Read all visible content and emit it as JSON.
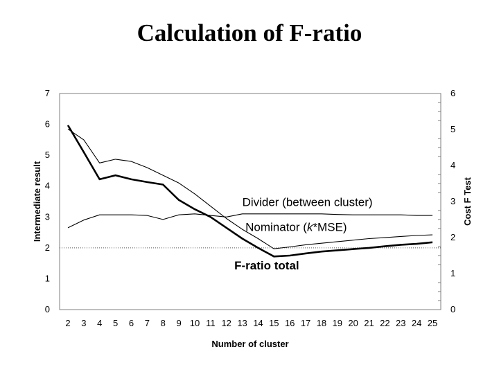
{
  "slide": {
    "title": "Calculation of F-ratio"
  },
  "chart_data": {
    "type": "line",
    "title": "",
    "xlabel": "Number of cluster",
    "ylabel": "Intermediate result",
    "y2label": "Cost F Test",
    "x": [
      2,
      3,
      4,
      5,
      6,
      7,
      8,
      9,
      10,
      11,
      12,
      13,
      14,
      15,
      16,
      17,
      18,
      19,
      20,
      21,
      22,
      23,
      24,
      25
    ],
    "ylim": [
      0,
      7
    ],
    "y2lim": [
      0,
      6
    ],
    "yticks": [
      0,
      1,
      2,
      3,
      4,
      5,
      6,
      7
    ],
    "y2ticks": [
      0,
      1,
      2,
      3,
      4,
      5,
      6
    ],
    "reference_line_y": 2,
    "series": [
      {
        "name": "Divider (between cluster)",
        "axis": "left",
        "style": "thin",
        "values": [
          2.65,
          2.9,
          3.07,
          3.07,
          3.07,
          3.05,
          2.92,
          3.07,
          3.1,
          3.05,
          3.0,
          3.1,
          3.1,
          3.1,
          3.1,
          3.1,
          3.1,
          3.08,
          3.07,
          3.07,
          3.07,
          3.07,
          3.05,
          3.05
        ]
      },
      {
        "name": "Nominator (k*MSE)",
        "axis": "left",
        "style": "thin",
        "values": [
          5.85,
          5.5,
          4.75,
          4.87,
          4.8,
          4.6,
          4.35,
          4.1,
          3.75,
          3.35,
          2.95,
          2.6,
          2.3,
          1.97,
          2.03,
          2.1,
          2.15,
          2.2,
          2.25,
          2.3,
          2.33,
          2.37,
          2.4,
          2.42
        ]
      },
      {
        "name": "F-ratio total",
        "axis": "left",
        "style": "bold",
        "values": [
          5.97,
          5.1,
          4.22,
          4.35,
          4.22,
          4.13,
          4.05,
          3.55,
          3.25,
          3.0,
          2.65,
          2.3,
          2.0,
          1.72,
          1.75,
          1.82,
          1.88,
          1.92,
          1.96,
          2.0,
          2.05,
          2.1,
          2.13,
          2.18
        ]
      }
    ],
    "annotations": [
      {
        "series_index": 0,
        "text": "Divider (between cluster)",
        "anchor_x": 13.0,
        "anchor_y": 3.35
      },
      {
        "series_index": 1,
        "text": "Nominator (",
        "italic": "k",
        "text_after": "*MSE)",
        "anchor_x": 13.2,
        "anchor_y": 2.55
      },
      {
        "series_index": 2,
        "text": "F-ratio total",
        "anchor_x": 12.5,
        "anchor_y": 1.3
      }
    ],
    "grid": false,
    "legend": "none"
  },
  "colors": {
    "line": "#000000",
    "frame": "#7f7f7f",
    "reference": "#555555"
  }
}
